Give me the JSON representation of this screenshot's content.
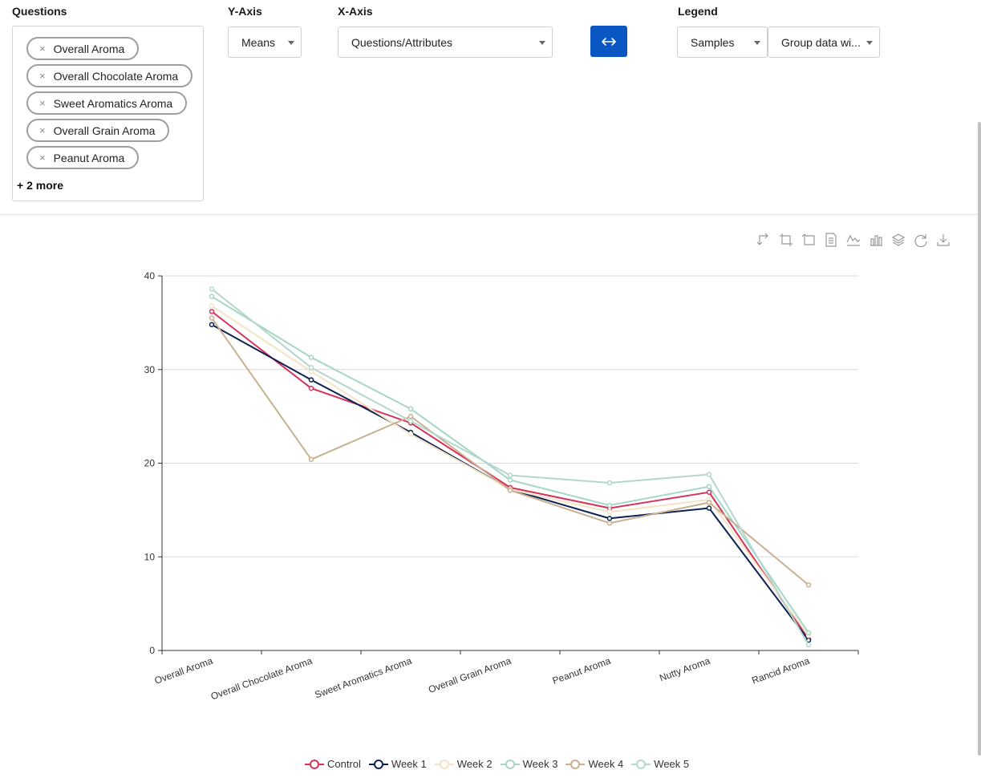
{
  "controls": {
    "questions_label": "Questions",
    "yaxis_label": "Y-Axis",
    "xaxis_label": "X-Axis",
    "legend_label": "Legend",
    "chips": [
      "Overall Aroma",
      "Overall Chocolate Aroma",
      "Sweet Aromatics Aroma",
      "Overall Grain Aroma",
      "Peanut Aroma"
    ],
    "chip_remove": "×",
    "more_text": "+ 2 more",
    "yaxis_value": "Means",
    "xaxis_value": "Questions/Attributes",
    "legend_value": "Samples",
    "group_value": "Group data wi..."
  },
  "toolbox_icons": [
    "rotate-axes-icon",
    "crop-icon",
    "crop-alt-icon",
    "data-view-icon",
    "line-chart-icon",
    "bar-chart-icon",
    "stack-icon",
    "restore-icon",
    "download-icon"
  ],
  "chart_data": {
    "type": "line",
    "categories": [
      "Overall Aroma",
      "Overall Chocolate Aroma",
      "Sweet Aromatics Aroma",
      "Overall Grain Aroma",
      "Peanut Aroma",
      "Nutty Aroma",
      "Rancid Aroma"
    ],
    "ylim": [
      0,
      40
    ],
    "yticks": [
      0,
      10,
      20,
      30,
      40
    ],
    "grid": true,
    "legend_position": "bottom",
    "series": [
      {
        "name": "Control",
        "color": "#d6315b",
        "values": [
          36.2,
          28.0,
          24.3,
          17.4,
          15.2,
          16.9,
          1.2
        ]
      },
      {
        "name": "Week 1",
        "color": "#0c2252",
        "values": [
          34.8,
          28.9,
          23.3,
          17.2,
          14.1,
          15.2,
          1.1
        ]
      },
      {
        "name": "Week 2",
        "color": "#f4e3c4",
        "values": [
          36.8,
          29.8,
          23.1,
          17.2,
          14.8,
          16.1,
          1.6
        ]
      },
      {
        "name": "Week 3",
        "color": "#a5d6c6",
        "values": [
          37.8,
          31.3,
          25.8,
          18.2,
          15.5,
          17.5,
          1.9
        ]
      },
      {
        "name": "Week 4",
        "color": "#c9b08f",
        "values": [
          35.5,
          20.4,
          25.0,
          17.1,
          13.6,
          15.8,
          7.0
        ]
      },
      {
        "name": "Week 5",
        "color": "#b5d6ce",
        "values": [
          38.6,
          30.2,
          24.5,
          18.7,
          17.9,
          18.8,
          0.6
        ]
      }
    ]
  }
}
